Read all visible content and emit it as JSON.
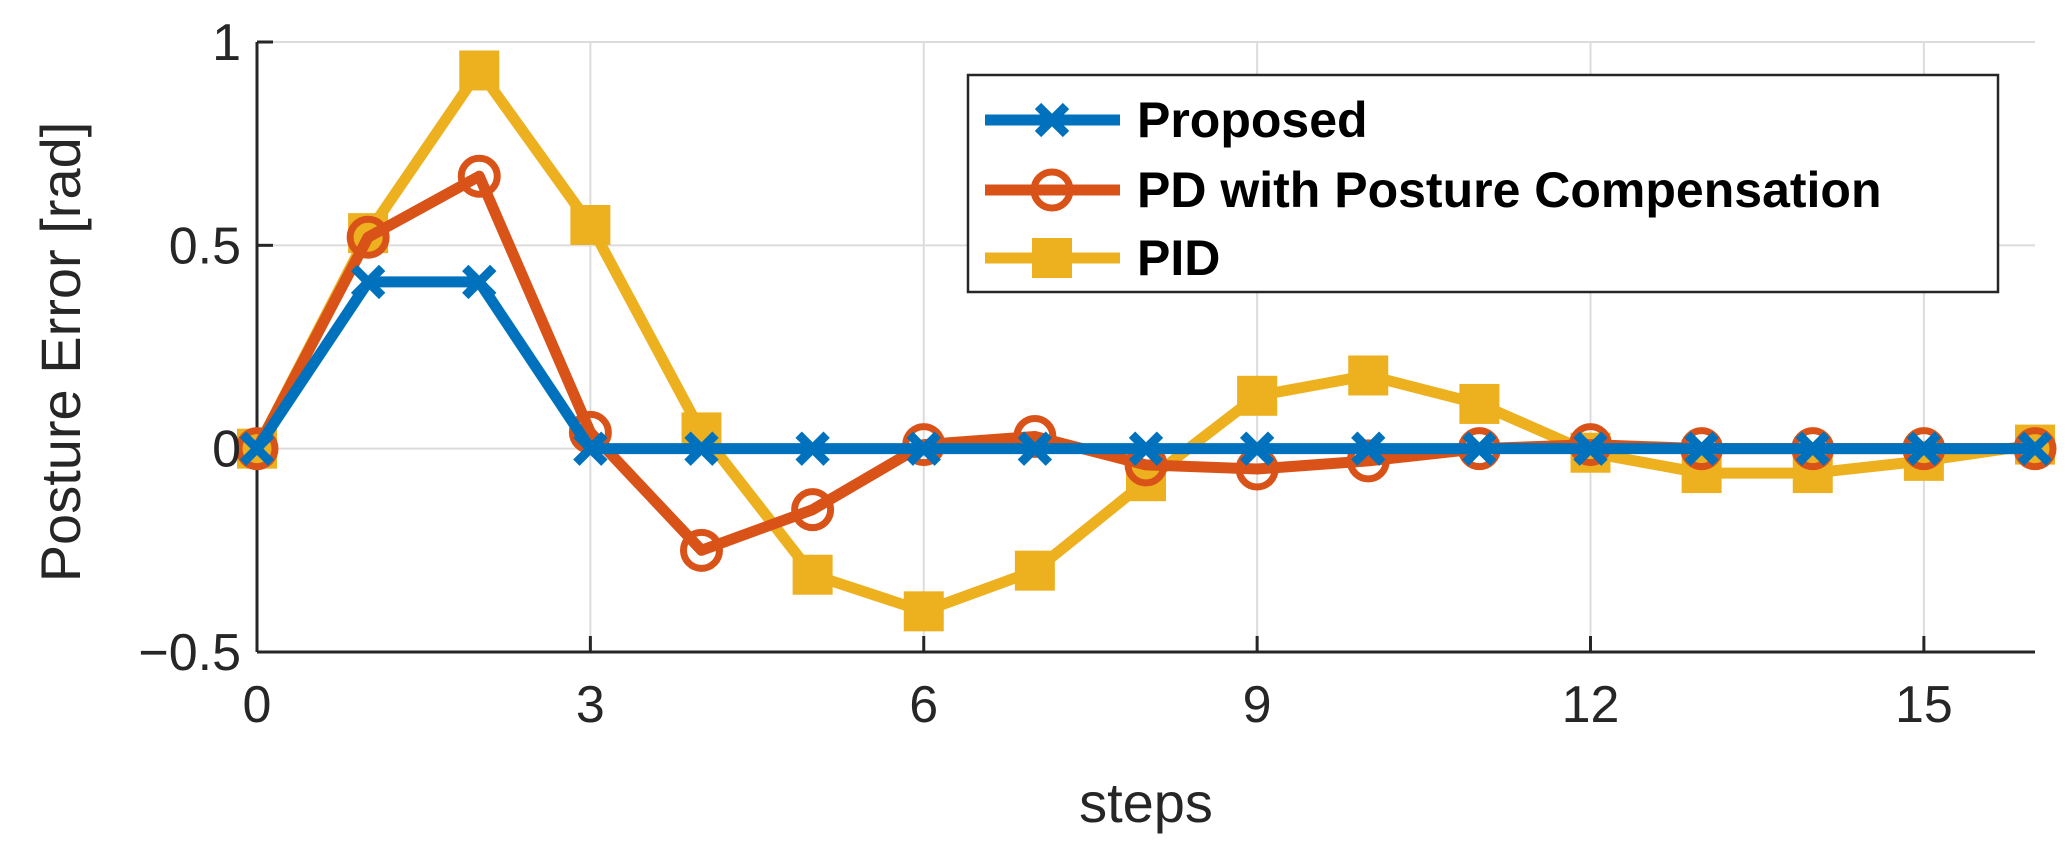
{
  "chart_data": {
    "type": "line",
    "title": "",
    "xlabel": "steps",
    "ylabel": "Posture Error [rad]",
    "xlim": [
      0,
      16
    ],
    "ylim": [
      -0.5,
      1
    ],
    "xticks": [
      0,
      3,
      6,
      9,
      12,
      15
    ],
    "xtick_labels": [
      "0",
      "3",
      "6",
      "9",
      "12",
      "15"
    ],
    "yticks": [
      -0.5,
      0,
      0.5,
      1
    ],
    "ytick_labels": [
      "−0.5",
      "0",
      "0.5",
      "1"
    ],
    "grid": true,
    "legend_position": "top-right",
    "x": [
      0,
      1,
      2,
      3,
      4,
      5,
      6,
      7,
      8,
      9,
      10,
      11,
      12,
      13,
      14,
      15,
      16
    ],
    "series": [
      {
        "name": "Proposed",
        "color": "#0072BD",
        "marker": "x",
        "values": [
          0,
          0.41,
          0.41,
          0,
          0,
          0,
          0,
          0,
          0,
          0,
          0,
          0,
          0,
          0,
          0,
          0,
          0
        ]
      },
      {
        "name": "PD with Posture Compensation",
        "color": "#D95319",
        "marker": "circle",
        "values": [
          0,
          0.52,
          0.67,
          0.04,
          -0.25,
          -0.15,
          0.01,
          0.03,
          -0.04,
          -0.05,
          -0.03,
          0.0,
          0.01,
          0.0,
          0.0,
          0.0,
          0.0
        ]
      },
      {
        "name": "PID",
        "color": "#EDB120",
        "marker": "square",
        "values": [
          0,
          0.53,
          0.93,
          0.55,
          0.04,
          -0.31,
          -0.4,
          -0.3,
          -0.08,
          0.13,
          0.18,
          0.11,
          -0.01,
          -0.06,
          -0.06,
          -0.03,
          0.01
        ]
      }
    ]
  }
}
